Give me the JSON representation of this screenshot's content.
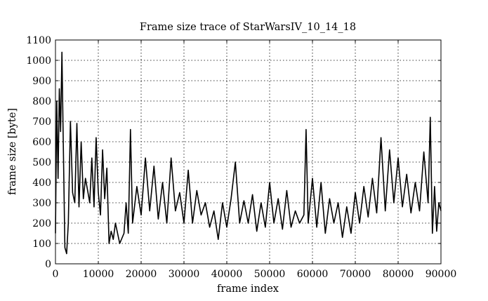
{
  "chart_data": {
    "type": "line",
    "title": "Frame size trace of StarWarsIV_10_14_18",
    "xlabel": "frame index",
    "ylabel": "frame size [byte]",
    "xlim": [
      0,
      90000
    ],
    "ylim": [
      0,
      1100
    ],
    "xticks": [
      0,
      10000,
      20000,
      30000,
      40000,
      50000,
      60000,
      70000,
      80000,
      90000
    ],
    "yticks": [
      0,
      100,
      200,
      300,
      400,
      500,
      600,
      700,
      800,
      900,
      1000,
      1100
    ],
    "grid": true,
    "line_color": "#000000",
    "series": [
      {
        "x": [
          0,
          300,
          600,
          900,
          1200,
          1500,
          1800,
          2200,
          2600,
          3000,
          3500,
          4000,
          4500,
          5000,
          5500,
          6000,
          6500,
          7000,
          7500,
          8000,
          8500,
          9000,
          9500,
          10000,
          10500,
          11000,
          11500,
          12000,
          12500,
          13000,
          13500,
          14000,
          15000,
          16000,
          16500,
          17000,
          17500,
          18000,
          19000,
          20000,
          21000,
          22000,
          23000,
          24000,
          25000,
          26000,
          27000,
          28000,
          29000,
          30000,
          31000,
          32000,
          33000,
          34000,
          35000,
          36000,
          37000,
          38000,
          39000,
          40000,
          41000,
          42000,
          43000,
          44000,
          45000,
          46000,
          47000,
          48000,
          49000,
          50000,
          51000,
          52000,
          53000,
          54000,
          55000,
          56000,
          57000,
          58000,
          58500,
          59000,
          60000,
          61000,
          62000,
          63000,
          64000,
          65000,
          66000,
          67000,
          68000,
          69000,
          70000,
          71000,
          72000,
          73000,
          74000,
          75000,
          76000,
          77000,
          78000,
          79000,
          80000,
          81000,
          82000,
          83000,
          84000,
          85000,
          86000,
          87000,
          87500,
          88000,
          88500,
          89000,
          89500,
          90000
        ],
        "y": [
          150,
          800,
          420,
          860,
          650,
          1040,
          620,
          80,
          50,
          200,
          700,
          350,
          300,
          690,
          280,
          600,
          320,
          420,
          360,
          300,
          520,
          280,
          620,
          350,
          240,
          560,
          320,
          470,
          100,
          160,
          120,
          200,
          100,
          150,
          300,
          150,
          660,
          200,
          380,
          240,
          520,
          260,
          480,
          220,
          400,
          200,
          520,
          260,
          350,
          200,
          460,
          200,
          360,
          240,
          300,
          180,
          260,
          120,
          300,
          180,
          320,
          500,
          200,
          310,
          200,
          340,
          160,
          300,
          180,
          400,
          200,
          320,
          170,
          360,
          180,
          260,
          200,
          240,
          660,
          200,
          420,
          180,
          400,
          150,
          320,
          200,
          300,
          130,
          280,
          150,
          350,
          200,
          380,
          230,
          420,
          250,
          620,
          260,
          560,
          300,
          520,
          280,
          440,
          250,
          400,
          260,
          550,
          300,
          720,
          150,
          380,
          160,
          300,
          260
        ]
      }
    ]
  }
}
